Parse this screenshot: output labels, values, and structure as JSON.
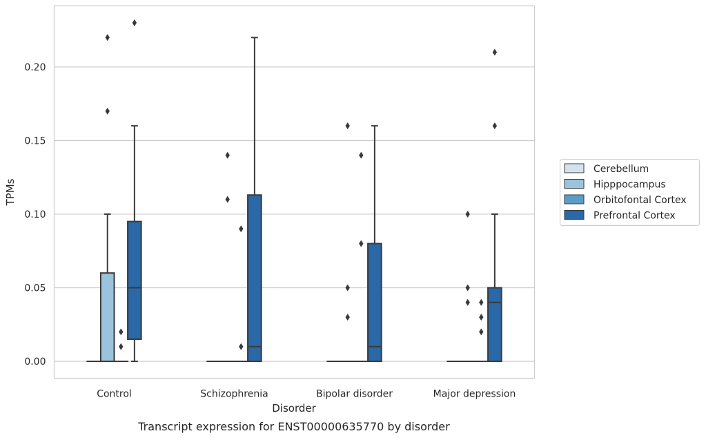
{
  "chart_data": {
    "type": "box",
    "title": "",
    "caption": "Transcript expression for ENST00000635770 by disorder",
    "xlabel": "Disorder",
    "ylabel": "TPMs",
    "ylim": [
      -0.0115,
      0.2415
    ],
    "yticks": [
      0.0,
      0.05,
      0.1,
      0.15,
      0.2
    ],
    "ytick_labels": [
      "0.00",
      "0.05",
      "0.10",
      "0.15",
      "0.20"
    ],
    "grid": "horizontal",
    "legend_position": "right",
    "categories": [
      "Control",
      "Schizophrenia",
      "Bipolar disorder",
      "Major depression"
    ],
    "series": [
      {
        "name": "Cerebellum",
        "color": "#d3e2ef",
        "boxes": [
          {
            "q1": 0,
            "median": 0,
            "q3": 0,
            "whisker_low": 0,
            "whisker_high": 0,
            "outliers": []
          },
          {
            "q1": 0,
            "median": 0,
            "q3": 0,
            "whisker_low": 0,
            "whisker_high": 0,
            "outliers": []
          },
          {
            "q1": 0,
            "median": 0,
            "q3": 0,
            "whisker_low": 0,
            "whisker_high": 0,
            "outliers": []
          },
          {
            "q1": 0,
            "median": 0,
            "q3": 0,
            "whisker_low": 0,
            "whisker_high": 0,
            "outliers": []
          }
        ]
      },
      {
        "name": "Hipppocampus",
        "color": "#9cc3dc",
        "boxes": [
          {
            "q1": 0,
            "median": 0,
            "q3": 0.06,
            "whisker_low": 0,
            "whisker_high": 0.1,
            "outliers": [
              0.17,
              0.22
            ]
          },
          {
            "q1": 0,
            "median": 0,
            "q3": 0,
            "whisker_low": 0,
            "whisker_high": 0,
            "outliers": [
              0.11,
              0.14
            ]
          },
          {
            "q1": 0,
            "median": 0,
            "q3": 0,
            "whisker_low": 0,
            "whisker_high": 0,
            "outliers": [
              0.03,
              0.05,
              0.16
            ]
          },
          {
            "q1": 0,
            "median": 0,
            "q3": 0,
            "whisker_low": 0,
            "whisker_high": 0,
            "outliers": [
              0.04,
              0.05,
              0.1
            ]
          }
        ]
      },
      {
        "name": "Orbitofontal Cortex",
        "color": "#5b9dc9",
        "boxes": [
          {
            "q1": 0,
            "median": 0,
            "q3": 0,
            "whisker_low": 0,
            "whisker_high": 0,
            "outliers": [
              0.01,
              0.02
            ]
          },
          {
            "q1": 0,
            "median": 0,
            "q3": 0,
            "whisker_low": 0,
            "whisker_high": 0,
            "outliers": [
              0.01,
              0.09
            ]
          },
          {
            "q1": 0,
            "median": 0,
            "q3": 0,
            "whisker_low": 0,
            "whisker_high": 0,
            "outliers": [
              0.08,
              0.14
            ]
          },
          {
            "q1": 0,
            "median": 0,
            "q3": 0,
            "whisker_low": 0,
            "whisker_high": 0,
            "outliers": [
              0.02,
              0.03,
              0.04
            ]
          }
        ]
      },
      {
        "name": "Prefrontal Cortex",
        "color": "#2a68a7",
        "boxes": [
          {
            "q1": 0.015,
            "median": 0.05,
            "q3": 0.095,
            "whisker_low": 0,
            "whisker_high": 0.16,
            "outliers": [
              0.23
            ]
          },
          {
            "q1": 0,
            "median": 0.01,
            "q3": 0.113,
            "whisker_low": 0,
            "whisker_high": 0.22,
            "outliers": []
          },
          {
            "q1": 0,
            "median": 0.01,
            "q3": 0.08,
            "whisker_low": 0,
            "whisker_high": 0.16,
            "outliers": []
          },
          {
            "q1": 0,
            "median": 0.04,
            "q3": 0.05,
            "whisker_low": 0,
            "whisker_high": 0.1,
            "outliers": [
              0.16,
              0.21
            ]
          }
        ]
      }
    ]
  }
}
